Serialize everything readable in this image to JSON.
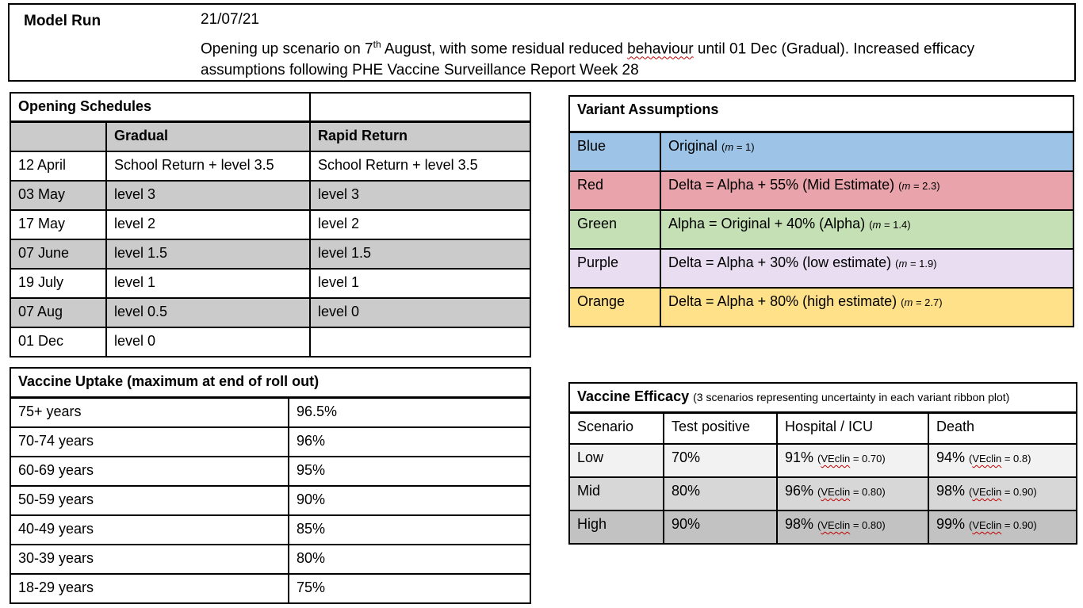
{
  "model_run": {
    "label": "Model Run",
    "date": "21/07/21",
    "desc_pre": "Opening up scenario on 7",
    "desc_sup": "th",
    "desc_mid": " August, with some residual reduced ",
    "desc_squiggle": "behaviour",
    "desc_post": " until 01 Dec (Gradual).  Increased efficacy assumptions following PHE Vaccine Surveillance Report Week 28"
  },
  "opening_schedules": {
    "title": "Opening Schedules",
    "col_headers": [
      "",
      "Gradual",
      "Rapid Return"
    ],
    "rows": [
      {
        "date": "12 April",
        "gradual": "School Return + level 3.5",
        "rapid": "School Return + level 3.5",
        "shaded": false
      },
      {
        "date": "03 May",
        "gradual": "level 3",
        "rapid": "level 3",
        "shaded": true
      },
      {
        "date": "17 May",
        "gradual": "level 2",
        "rapid": "level 2",
        "shaded": false
      },
      {
        "date": "07 June",
        "gradual": "level 1.5",
        "rapid": "level 1.5",
        "shaded": true
      },
      {
        "date": "19 July",
        "gradual": "level 1",
        "rapid": "level 1",
        "shaded": false
      },
      {
        "date": "07 Aug",
        "gradual": "level 0.5",
        "rapid": "level 0",
        "shaded": true
      },
      {
        "date": "01 Dec",
        "gradual": "level 0",
        "rapid": "",
        "shaded": false
      }
    ]
  },
  "variant_assumptions": {
    "title": "Variant Assumptions",
    "rows": [
      {
        "label": "Blue",
        "color": "#9DC3E6",
        "desc": "Original",
        "note_open": "(",
        "note_m": "m",
        "note_rest": " = 1)"
      },
      {
        "label": "Red",
        "color": "#E8A3AB",
        "desc": "Delta =  Alpha + 55% (Mid Estimate)",
        "note_open": "(",
        "note_m": "m",
        "note_rest": " = 2.3)"
      },
      {
        "label": "Green",
        "color": "#C5E0B4",
        "desc": "Alpha = Original + 40% (Alpha)",
        "note_open": "(",
        "note_m": "m",
        "note_rest": " = 1.4)"
      },
      {
        "label": "Purple",
        "color": "#E9DDF1",
        "desc": "Delta = Alpha + 30% (low estimate)",
        "note_open": "(",
        "note_m": "m",
        "note_rest": " = 1.9)"
      },
      {
        "label": "Orange",
        "color": "#FFE18A",
        "desc": "Delta = Alpha + 80% (high estimate)",
        "note_open": "(",
        "note_m": "m",
        "note_rest": " = 2.7)"
      }
    ]
  },
  "vaccine_uptake": {
    "title": "Vaccine Uptake (maximum at end of roll out)",
    "rows": [
      {
        "group": "75+ years",
        "uptake": "96.5%"
      },
      {
        "group": "70-74 years",
        "uptake": "96%"
      },
      {
        "group": "60-69 years",
        "uptake": "95%"
      },
      {
        "group": "50-59 years",
        "uptake": "90%"
      },
      {
        "group": "40-49 years",
        "uptake": "85%"
      },
      {
        "group": "30-39 years",
        "uptake": "80%"
      },
      {
        "group": "18-29 years",
        "uptake": "75%"
      }
    ]
  },
  "vaccine_efficacy": {
    "title": "Vaccine Efficacy",
    "subtitle": "(3 scenarios representing uncertainty in each variant ribbon plot)",
    "col_headers": [
      "Scenario",
      "Test positive",
      "Hospital / ICU",
      "Death"
    ],
    "rows": [
      {
        "scenario": "Low",
        "shade": "#F2F2F2",
        "test_positive": "70%",
        "hospital_value": "91%",
        "hospital_note_open": "(",
        "hospital_note_word": "VEclin",
        "hospital_note_rest": " = 0.70)",
        "death_value": "94%",
        "death_note_open": "(",
        "death_note_word": "VEclin",
        "death_note_rest": " = 0.8)"
      },
      {
        "scenario": "Mid",
        "shade": "#D7D7D7",
        "test_positive": "80%",
        "hospital_value": "96%",
        "hospital_note_open": "(",
        "hospital_note_word": "VEclin",
        "hospital_note_rest": " = 0.80)",
        "death_value": "98%",
        "death_note_open": "(",
        "death_note_word": "VEclin",
        "death_note_rest": " = 0.90)"
      },
      {
        "scenario": "High",
        "shade": "#C2C2C2",
        "test_positive": "90%",
        "hospital_value": "98%",
        "hospital_note_open": "(",
        "hospital_note_word": "VEclin",
        "hospital_note_rest": " = 0.80)",
        "death_value": "99%",
        "death_note_open": "(",
        "death_note_word": "VEclin",
        "death_note_rest": " = 0.90)"
      }
    ]
  },
  "colors": {
    "table_border": "#000000",
    "band_gray": "#CBCBCB",
    "squiggle_red": "#C00000"
  }
}
